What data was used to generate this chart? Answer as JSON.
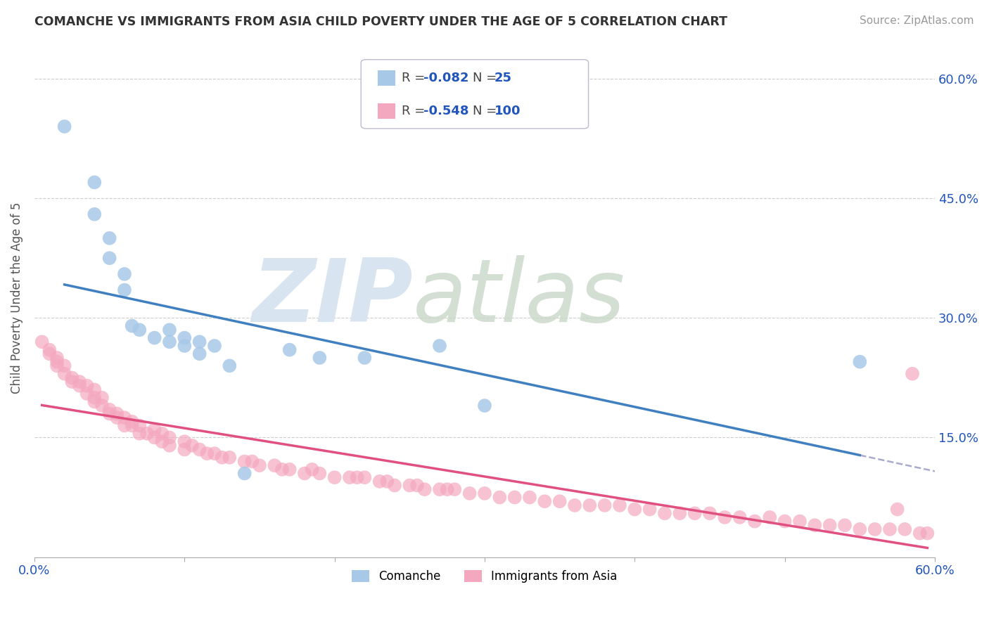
{
  "title": "COMANCHE VS IMMIGRANTS FROM ASIA CHILD POVERTY UNDER THE AGE OF 5 CORRELATION CHART",
  "source": "Source: ZipAtlas.com",
  "ylabel": "Child Poverty Under the Age of 5",
  "comanche_R": -0.082,
  "comanche_N": 25,
  "asia_R": -0.548,
  "asia_N": 100,
  "comanche_color": "#a8c8e8",
  "asia_color": "#f4a8c0",
  "trend_comanche_color": "#4080c0",
  "trend_asia_color": "#e05080",
  "dashed_line_color": "#aaaacc",
  "background_color": "#ffffff",
  "legend_text_color": "#2255bb",
  "xlim": [
    0.0,
    0.6
  ],
  "ylim": [
    0.0,
    0.65
  ],
  "comanche_x": [
    0.02,
    0.04,
    0.04,
    0.05,
    0.05,
    0.06,
    0.06,
    0.065,
    0.07,
    0.08,
    0.09,
    0.09,
    0.1,
    0.1,
    0.11,
    0.11,
    0.12,
    0.13,
    0.14,
    0.17,
    0.19,
    0.22,
    0.27,
    0.3,
    0.55
  ],
  "comanche_y": [
    0.54,
    0.47,
    0.43,
    0.4,
    0.375,
    0.355,
    0.335,
    0.29,
    0.285,
    0.275,
    0.285,
    0.27,
    0.275,
    0.265,
    0.27,
    0.255,
    0.265,
    0.24,
    0.105,
    0.26,
    0.25,
    0.25,
    0.265,
    0.19,
    0.245
  ],
  "asia_x": [
    0.005,
    0.01,
    0.01,
    0.015,
    0.015,
    0.015,
    0.02,
    0.02,
    0.025,
    0.025,
    0.03,
    0.03,
    0.035,
    0.035,
    0.04,
    0.04,
    0.04,
    0.045,
    0.045,
    0.05,
    0.05,
    0.055,
    0.055,
    0.06,
    0.06,
    0.065,
    0.065,
    0.07,
    0.07,
    0.075,
    0.08,
    0.08,
    0.085,
    0.085,
    0.09,
    0.09,
    0.1,
    0.1,
    0.105,
    0.11,
    0.115,
    0.12,
    0.125,
    0.13,
    0.14,
    0.145,
    0.15,
    0.16,
    0.165,
    0.17,
    0.18,
    0.185,
    0.19,
    0.2,
    0.21,
    0.215,
    0.22,
    0.23,
    0.235,
    0.24,
    0.25,
    0.255,
    0.26,
    0.27,
    0.275,
    0.28,
    0.29,
    0.3,
    0.31,
    0.32,
    0.33,
    0.34,
    0.35,
    0.36,
    0.37,
    0.38,
    0.39,
    0.4,
    0.41,
    0.42,
    0.43,
    0.44,
    0.45,
    0.46,
    0.47,
    0.48,
    0.49,
    0.5,
    0.51,
    0.52,
    0.53,
    0.54,
    0.55,
    0.56,
    0.57,
    0.575,
    0.58,
    0.585,
    0.59,
    0.595
  ],
  "asia_y": [
    0.27,
    0.26,
    0.255,
    0.25,
    0.245,
    0.24,
    0.24,
    0.23,
    0.225,
    0.22,
    0.22,
    0.215,
    0.215,
    0.205,
    0.21,
    0.2,
    0.195,
    0.2,
    0.19,
    0.185,
    0.18,
    0.18,
    0.175,
    0.175,
    0.165,
    0.17,
    0.165,
    0.165,
    0.155,
    0.155,
    0.16,
    0.15,
    0.155,
    0.145,
    0.15,
    0.14,
    0.145,
    0.135,
    0.14,
    0.135,
    0.13,
    0.13,
    0.125,
    0.125,
    0.12,
    0.12,
    0.115,
    0.115,
    0.11,
    0.11,
    0.105,
    0.11,
    0.105,
    0.1,
    0.1,
    0.1,
    0.1,
    0.095,
    0.095,
    0.09,
    0.09,
    0.09,
    0.085,
    0.085,
    0.085,
    0.085,
    0.08,
    0.08,
    0.075,
    0.075,
    0.075,
    0.07,
    0.07,
    0.065,
    0.065,
    0.065,
    0.065,
    0.06,
    0.06,
    0.055,
    0.055,
    0.055,
    0.055,
    0.05,
    0.05,
    0.045,
    0.05,
    0.045,
    0.045,
    0.04,
    0.04,
    0.04,
    0.035,
    0.035,
    0.035,
    0.06,
    0.035,
    0.23,
    0.03,
    0.03
  ]
}
